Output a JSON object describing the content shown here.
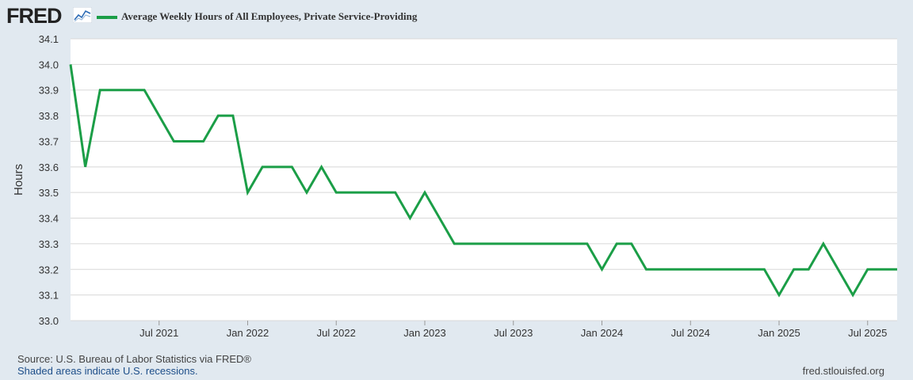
{
  "header": {
    "logo_text": "FRED",
    "logo_icon": "line-graph-icon",
    "legend_label": "Average Weekly Hours of All Employees, Private Service-Providing",
    "series_color": "#1b9e47"
  },
  "chart_data": {
    "type": "line",
    "title": "Average Weekly Hours of All Employees, Private Service-Providing",
    "ylabel": "Hours",
    "xlabel": "",
    "ylim": [
      33.0,
      34.1
    ],
    "yticks": [
      "33.0",
      "33.1",
      "33.2",
      "33.3",
      "33.4",
      "33.5",
      "33.6",
      "33.7",
      "33.8",
      "33.9",
      "34.0",
      "34.1"
    ],
    "xlim_months": [
      0,
      56
    ],
    "xtick_labels": [
      {
        "label": "Jul 2021",
        "month": 6
      },
      {
        "label": "Jan 2022",
        "month": 12
      },
      {
        "label": "Jul 2022",
        "month": 18
      },
      {
        "label": "Jan 2023",
        "month": 24
      },
      {
        "label": "Jul 2023",
        "month": 30
      },
      {
        "label": "Jan 2024",
        "month": 36
      },
      {
        "label": "Jul 2024",
        "month": 42
      },
      {
        "label": "Jan 2025",
        "month": 48
      },
      {
        "label": "Jul 2025",
        "month": 54
      }
    ],
    "start": "Jan 2021",
    "series": [
      {
        "name": "Average Weekly Hours of All Employees, Private Service-Providing",
        "values": [
          34.0,
          33.6,
          33.9,
          33.9,
          33.9,
          33.9,
          33.8,
          33.7,
          33.7,
          33.7,
          33.8,
          33.8,
          33.5,
          33.6,
          33.6,
          33.6,
          33.5,
          33.6,
          33.5,
          33.5,
          33.5,
          33.5,
          33.5,
          33.4,
          33.5,
          33.4,
          33.3,
          33.3,
          33.3,
          33.3,
          33.3,
          33.3,
          33.3,
          33.3,
          33.3,
          33.3,
          33.2,
          33.3,
          33.3,
          33.2,
          33.2,
          33.2,
          33.2,
          33.2,
          33.2,
          33.2,
          33.2,
          33.2,
          33.1,
          33.2,
          33.2,
          33.3,
          33.2,
          33.1,
          33.2,
          33.2,
          33.2
        ]
      }
    ],
    "grid": true
  },
  "footer": {
    "source": "Source: U.S. Bureau of Labor Statistics via FRED®",
    "recessions": "Shaded areas indicate U.S. recessions.",
    "url": "fred.stlouisfed.org"
  }
}
